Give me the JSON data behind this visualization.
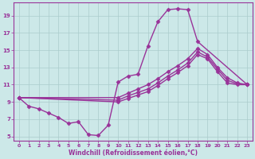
{
  "bg_color": "#cce8e8",
  "line_color": "#993399",
  "marker_color": "#993399",
  "grid_color": "#aacccc",
  "xlabel": "Windchill (Refroidissement éolien,°C)",
  "xlim": [
    -0.5,
    23.5
  ],
  "ylim": [
    4.5,
    20.5
  ],
  "yticks": [
    5,
    7,
    9,
    11,
    13,
    15,
    17,
    19
  ],
  "xticks": [
    0,
    1,
    2,
    3,
    4,
    5,
    6,
    7,
    8,
    9,
    10,
    11,
    12,
    13,
    14,
    15,
    16,
    17,
    18,
    19,
    20,
    21,
    22,
    23
  ],
  "lines": [
    {
      "x": [
        0,
        1,
        2,
        3,
        4,
        5,
        6,
        7,
        8,
        9,
        10,
        11,
        12,
        13,
        14,
        15,
        16,
        17,
        18,
        23
      ],
      "y": [
        9.5,
        8.5,
        8.2,
        7.7,
        7.2,
        6.5,
        6.7,
        5.2,
        5.1,
        6.3,
        11.3,
        12.0,
        12.2,
        15.5,
        18.3,
        19.7,
        19.8,
        19.7,
        16.0,
        11.0
      ]
    },
    {
      "x": [
        0,
        10,
        11,
        12,
        13,
        14,
        15,
        16,
        17,
        18,
        19,
        20,
        21,
        22,
        23
      ],
      "y": [
        9.5,
        9.5,
        10.0,
        10.5,
        11.0,
        11.7,
        12.5,
        13.2,
        14.0,
        15.2,
        14.5,
        13.0,
        11.8,
        11.2,
        11.0
      ]
    },
    {
      "x": [
        0,
        10,
        11,
        12,
        13,
        14,
        15,
        16,
        17,
        18,
        19,
        20,
        21,
        22,
        23
      ],
      "y": [
        9.5,
        9.2,
        9.7,
        10.1,
        10.5,
        11.2,
        12.0,
        12.7,
        13.5,
        14.8,
        14.2,
        12.8,
        11.5,
        11.1,
        11.0
      ]
    },
    {
      "x": [
        0,
        10,
        11,
        12,
        13,
        14,
        15,
        16,
        17,
        18,
        19,
        20,
        21,
        22,
        23
      ],
      "y": [
        9.5,
        9.0,
        9.4,
        9.8,
        10.2,
        10.9,
        11.7,
        12.4,
        13.2,
        14.5,
        14.0,
        12.5,
        11.2,
        11.0,
        11.0
      ]
    }
  ]
}
